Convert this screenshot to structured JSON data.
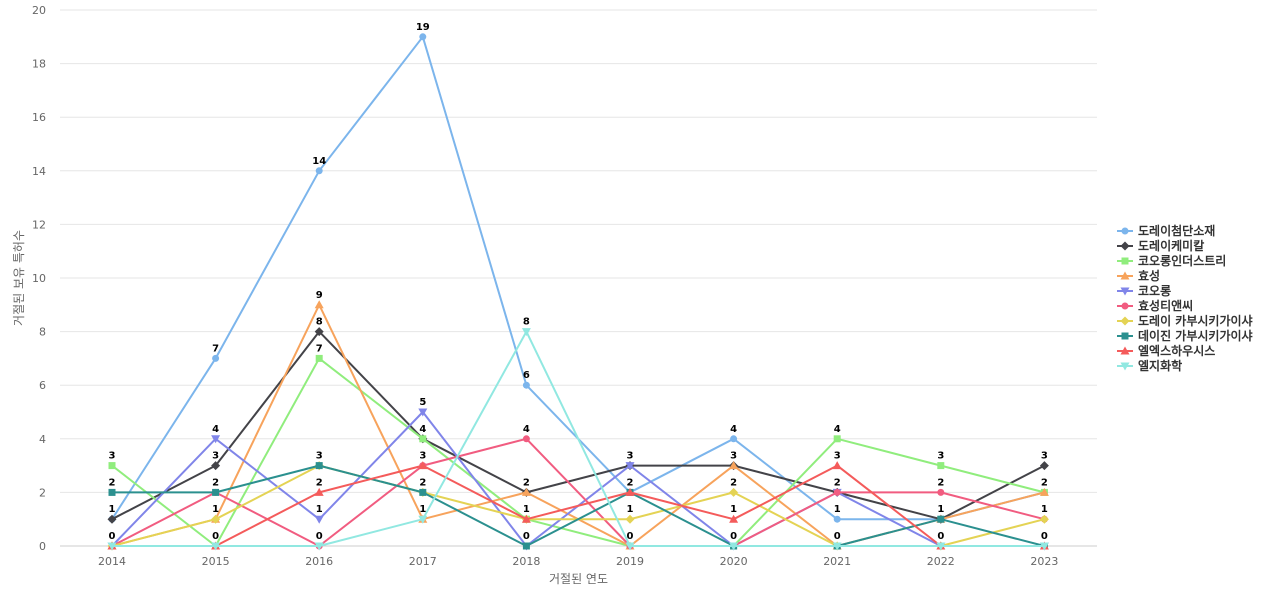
{
  "chart_data": {
    "type": "line",
    "title": "",
    "xlabel": "거절된 연도",
    "ylabel": "거절된 보유 특허수",
    "ylim": [
      0,
      20
    ],
    "yticks": [
      0,
      2,
      4,
      6,
      8,
      10,
      12,
      14,
      16,
      18,
      20
    ],
    "grid": true,
    "legend_position": "right",
    "categories": [
      "2014",
      "2015",
      "2016",
      "2017",
      "2018",
      "2019",
      "2020",
      "2021",
      "2022",
      "2023"
    ],
    "series": [
      {
        "name": "도레이첨단소재",
        "color": "#7cb5ec",
        "marker": "circle",
        "values": [
          1,
          7,
          14,
          19,
          6,
          2,
          4,
          1,
          1,
          2
        ]
      },
      {
        "name": "도레이케미칼",
        "color": "#434348",
        "marker": "diamond",
        "values": [
          1,
          3,
          8,
          4,
          2,
          3,
          3,
          2,
          1,
          3
        ]
      },
      {
        "name": "코오롱인더스트리",
        "color": "#90ed7d",
        "marker": "square",
        "values": [
          3,
          0,
          7,
          4,
          1,
          0,
          0,
          4,
          3,
          2
        ]
      },
      {
        "name": "효성",
        "color": "#f7a35c",
        "marker": "triangle",
        "values": [
          0,
          1,
          9,
          1,
          2,
          0,
          3,
          0,
          1,
          2
        ]
      },
      {
        "name": "코오롱",
        "color": "#8085e9",
        "marker": "triangle-down",
        "values": [
          0,
          4,
          1,
          5,
          0,
          3,
          0,
          2,
          0,
          0
        ]
      },
      {
        "name": "효성티앤씨",
        "color": "#f15c80",
        "marker": "circle",
        "values": [
          0,
          2,
          0,
          3,
          4,
          0,
          0,
          2,
          2,
          1
        ]
      },
      {
        "name": "도레이 카부시키가이샤",
        "color": "#e4d354",
        "marker": "diamond",
        "values": [
          0,
          1,
          3,
          2,
          1,
          1,
          2,
          0,
          0,
          1
        ]
      },
      {
        "name": "데이진 가부시키가이샤",
        "color": "#2b908f",
        "marker": "square",
        "values": [
          2,
          2,
          3,
          2,
          0,
          2,
          0,
          0,
          1,
          0
        ]
      },
      {
        "name": "엘엑스하우시스",
        "color": "#f45b5b",
        "marker": "triangle",
        "values": [
          0,
          0,
          2,
          3,
          1,
          2,
          1,
          3,
          0,
          0
        ]
      },
      {
        "name": "엘지화학",
        "color": "#91e8e1",
        "marker": "triangle-down",
        "values": [
          0,
          0,
          0,
          1,
          8,
          0,
          0,
          0,
          0,
          0
        ]
      }
    ],
    "data_labels": [
      {
        "category": "2014",
        "values": [
          "3",
          "2",
          "1",
          "0"
        ]
      },
      {
        "category": "2015",
        "values": [
          "7",
          "4",
          "3",
          "2",
          "1",
          "0"
        ]
      },
      {
        "category": "2016",
        "values": [
          "14",
          "9",
          "8",
          "7",
          "3",
          "2",
          "1",
          "0"
        ]
      },
      {
        "category": "2017",
        "values": [
          "19",
          "5",
          "4",
          "3",
          "2",
          "1"
        ]
      },
      {
        "category": "2018",
        "values": [
          "8",
          "6",
          "4",
          "2",
          "1",
          "0"
        ]
      },
      {
        "category": "2019",
        "values": [
          "3",
          "2",
          "1",
          "0"
        ]
      },
      {
        "category": "2020",
        "values": [
          "4",
          "3",
          "2",
          "1",
          "0"
        ]
      },
      {
        "category": "2021",
        "values": [
          "4",
          "3",
          "2",
          "1",
          "0"
        ]
      },
      {
        "category": "2022",
        "values": [
          "3",
          "2",
          "1",
          "0"
        ]
      },
      {
        "category": "2023",
        "values": [
          "3",
          "2",
          "1",
          "0"
        ]
      }
    ]
  }
}
